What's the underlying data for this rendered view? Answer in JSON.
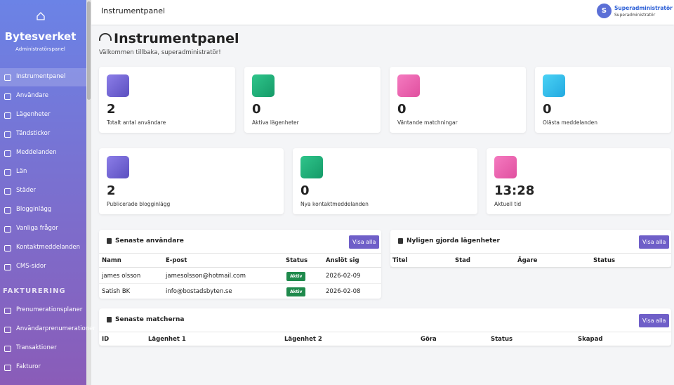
{
  "sidebar": {
    "brand": "Bytesverket",
    "subtitle": "Administratörspanel",
    "nav": [
      "Instrumentpanel",
      "Användare",
      "Lägenheter",
      "Tändstickor",
      "Meddelanden",
      "Län",
      "Städer",
      "Blogginlägg",
      "Vanliga frågor",
      "Kontaktmeddelanden",
      "CMS-sidor"
    ],
    "billing_heading": "FAKTURERING",
    "billing_nav": [
      "Prenumerationsplaner",
      "Användarprenumerationer",
      "Transaktioner",
      "Fakturor"
    ]
  },
  "topbar": {
    "title": "Instrumentpanel",
    "user_initial": "S",
    "user_name": "Superadministratör",
    "user_role": "Superadministratör"
  },
  "header": {
    "title": "Instrumentpanel",
    "welcome": "Välkommen tillbaka, superadministratör!"
  },
  "stats": [
    {
      "value": 2,
      "label": "Totalt antal användare"
    },
    {
      "value": 0,
      "label": "Aktiva lägenheter"
    },
    {
      "value": 0,
      "label": "Väntande matchningar"
    },
    {
      "value": 0,
      "label": "Olästa meddelanden"
    },
    {
      "value": 2,
      "label": "Publicerade blogginlägg"
    },
    {
      "value": 0,
      "label": "Nya kontaktmeddelanden"
    },
    {
      "value": "13:28",
      "label": "Aktuell tid"
    }
  ],
  "recent_users": {
    "title": "Senaste användare",
    "button": "Visa alla",
    "columns": [
      "Namn",
      "E-post",
      "Status",
      "Anslöt sig"
    ],
    "rows": [
      [
        "james olsson",
        "jamesolsson@hotmail.com",
        "Aktiv",
        "2026-02-09"
      ],
      [
        "Satish BK",
        "info@bostadsbyten.se",
        "Aktiv",
        "2026-02-08"
      ]
    ]
  },
  "recent_apartments": {
    "title": "Nyligen gjorda lägenheter",
    "button": "Visa alla",
    "columns": [
      "Titel",
      "Stad",
      "Ägare",
      "Status"
    ]
  },
  "recent_matches": {
    "title": "Senaste matcherna",
    "button": "Visa alla",
    "columns": [
      "ID",
      "Lägenhet 1",
      "Lägenhet 2",
      "Göra",
      "Status",
      "Skapad"
    ]
  }
}
